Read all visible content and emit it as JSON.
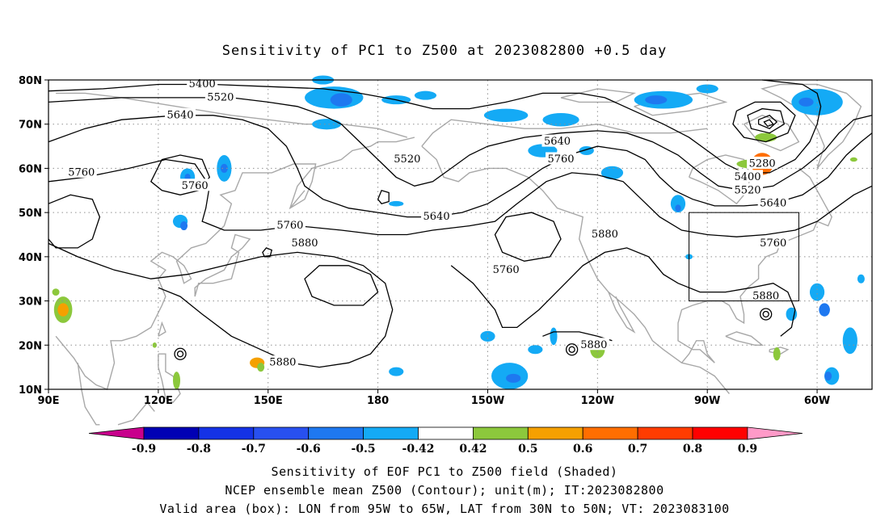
{
  "title": "Sensitivity of PC1 to Z500 at 2023082800 +0.5 day",
  "map": {
    "lat_ticks": [
      "80N",
      "70N",
      "60N",
      "50N",
      "40N",
      "30N",
      "20N",
      "10N"
    ],
    "lon_ticks": [
      "90E",
      "120E",
      "150E",
      "180",
      "150W",
      "120W",
      "90W",
      "60W"
    ],
    "lon_range": [
      90,
      315
    ],
    "lat_range": [
      10,
      80
    ],
    "box": {
      "lon": [
        265,
        295
      ],
      "lat": [
        30,
        50
      ]
    },
    "colors": {
      "contour": "#000000",
      "coast": "#a8a8a8",
      "grid": "#909090"
    },
    "contour_labels": [
      {
        "text": "5400",
        "lon": 132,
        "lat": 79
      },
      {
        "text": "5520",
        "lon": 137,
        "lat": 76
      },
      {
        "text": "5640",
        "lon": 126,
        "lat": 72
      },
      {
        "text": "5760",
        "lon": 99,
        "lat": 59
      },
      {
        "text": "5760",
        "lon": 130,
        "lat": 56
      },
      {
        "text": "5520",
        "lon": 188,
        "lat": 62
      },
      {
        "text": "5640",
        "lon": 229,
        "lat": 66
      },
      {
        "text": "5760",
        "lon": 230,
        "lat": 62
      },
      {
        "text": "5640",
        "lon": 196,
        "lat": 49
      },
      {
        "text": "5760",
        "lon": 156,
        "lat": 47
      },
      {
        "text": "5880",
        "lon": 160,
        "lat": 43
      },
      {
        "text": "5760",
        "lon": 215,
        "lat": 37
      },
      {
        "text": "5880",
        "lon": 242,
        "lat": 45
      },
      {
        "text": "5280",
        "lon": 285,
        "lat": 61
      },
      {
        "text": "5400",
        "lon": 281,
        "lat": 58
      },
      {
        "text": "5520",
        "lon": 281,
        "lat": 55
      },
      {
        "text": "5640",
        "lon": 288,
        "lat": 52
      },
      {
        "text": "5760",
        "lon": 288,
        "lat": 43
      },
      {
        "text": "5880",
        "lon": 286,
        "lat": 31
      },
      {
        "text": "5880",
        "lon": 154,
        "lat": 16
      },
      {
        "text": "5880",
        "lon": 239,
        "lat": 20
      }
    ]
  },
  "colorbar": {
    "labels": [
      "-0.9",
      "-0.8",
      "-0.7",
      "-0.6",
      "-0.5",
      "-0.42",
      "0.42",
      "0.5",
      "0.6",
      "0.7",
      "0.8",
      "0.9"
    ],
    "colors": [
      "#c8008c",
      "#0000b4",
      "#1432e6",
      "#2850f0",
      "#1e78f0",
      "#14aaf5",
      "#ffffff",
      "#8cc83c",
      "#f5a000",
      "#ff6e00",
      "#ff3c00",
      "#ff0000",
      "#ff9ac8"
    ]
  },
  "footer": {
    "line1": "Sensitivity of EOF PC1 to Z500 field (Shaded)",
    "line2": "NCEP ensemble mean Z500 (Contour); unit(m); IT:2023082800",
    "line3": "Valid area (box): LON from 95W to 65W, LAT from 30N to 50N; VT: 2023083100"
  }
}
